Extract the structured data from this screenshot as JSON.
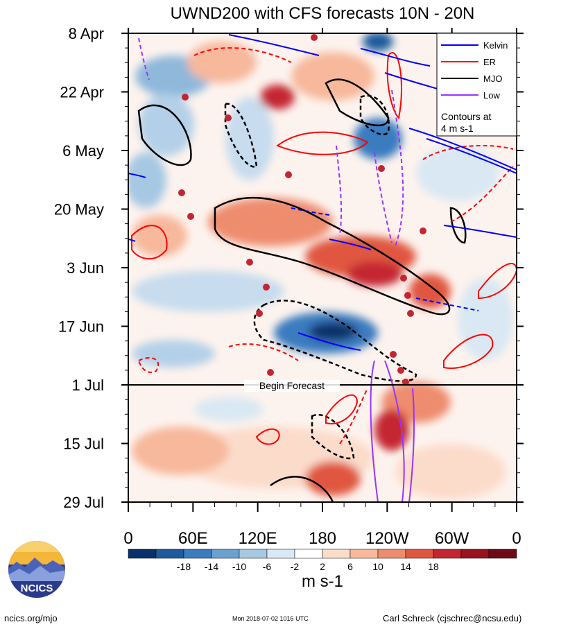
{
  "chart_data": {
    "type": "heatmap",
    "title": "UWND200 with CFS forecasts  10N - 20N",
    "x_axis": {
      "tick_labels": [
        "0",
        "60E",
        "120E",
        "180",
        "120W",
        "60W",
        "0"
      ],
      "range_deg_east": [
        0,
        360
      ]
    },
    "y_axis": {
      "tick_labels": [
        "8 Apr",
        "22 Apr",
        "6 May",
        "20 May",
        "3 Jun",
        "17 Jun",
        "1 Jul",
        "15 Jul",
        "29 Jul"
      ],
      "range": [
        "8 Apr",
        "29 Jul"
      ],
      "direction": "time increases downward"
    },
    "forecast_marker": {
      "date": "1 Jul",
      "label": "Begin Forecast"
    },
    "colorbar": {
      "unit": "m s-1",
      "tick_labels": [
        "-18",
        "-14",
        "-10",
        "-6",
        "-2",
        "2",
        "6",
        "10",
        "14",
        "18"
      ],
      "colors": [
        "#08306b",
        "#1f5a9c",
        "#3b7bbf",
        "#6aa1d0",
        "#a6c8e3",
        "#d9e8f3",
        "#ffffff",
        "#fbdccb",
        "#f7b89b",
        "#ee8c6e",
        "#e0573f",
        "#c42532",
        "#99121e",
        "#6d0a16"
      ]
    },
    "legend": {
      "placement": "top-right",
      "entries": [
        {
          "label": "Kelvin",
          "color": "#0000ff"
        },
        {
          "label": "ER",
          "color": "#ff0000"
        },
        {
          "label": "MJO",
          "color": "#000000"
        },
        {
          "label": "Low",
          "color": "#9933ff"
        }
      ],
      "note_line1": "Contours at",
      "note_line2": "4 m s-1"
    },
    "grid": false
  },
  "footer": {
    "left": "ncics.org/mjo",
    "center": "Mon 2018-07-02 1016 UTC",
    "right": "Carl Schreck (cjschrec@ncsu.edu)"
  },
  "logo": {
    "text": "NCICS",
    "icon": "ncics-mountain-logo-icon"
  }
}
